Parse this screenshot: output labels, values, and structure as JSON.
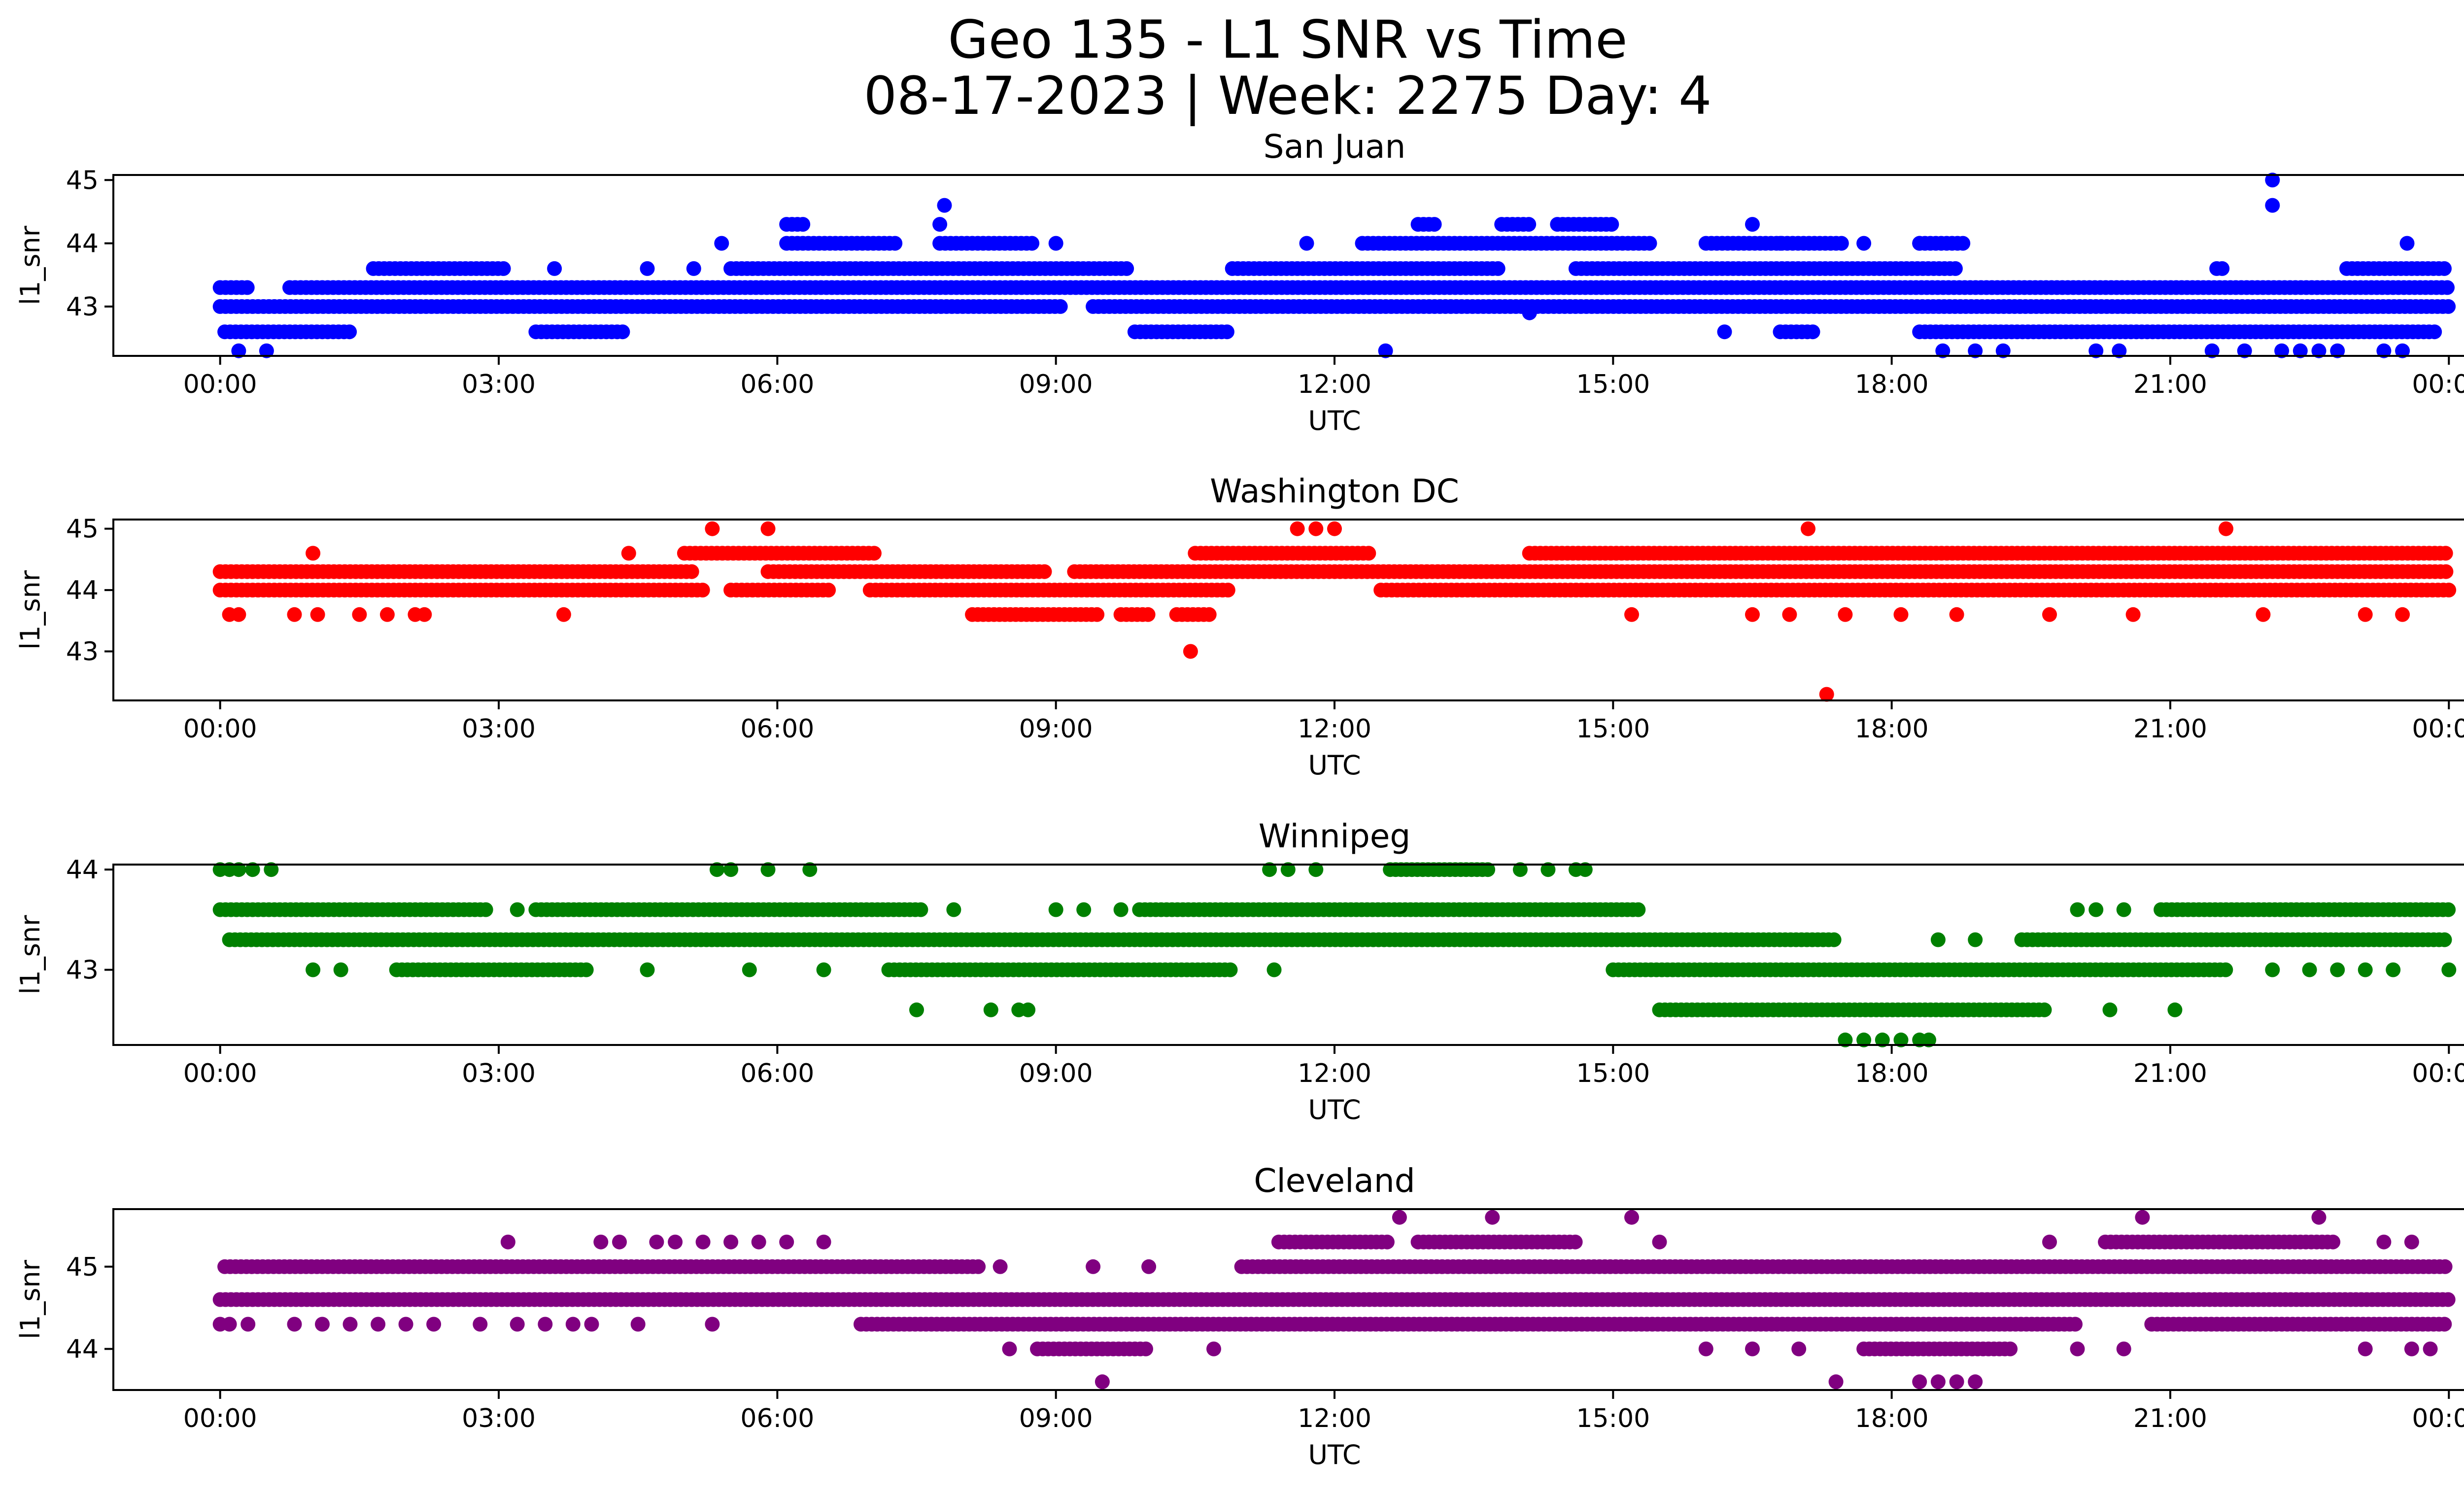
{
  "figure": {
    "title_line1": "Geo 135 - L1 SNR vs Time",
    "title_line2": "08-17-2023 | Week: 2275 Day: 4"
  },
  "chart_data": [
    {
      "type": "scatter",
      "title": "San Juan",
      "xlabel": "UTC",
      "ylabel": "l1_snr",
      "color": "#0000ff",
      "x_ticks": [
        "00:00",
        "03:00",
        "06:00",
        "09:00",
        "12:00",
        "15:00",
        "18:00",
        "21:00",
        "00:00"
      ],
      "x_range_hours": [
        -1.15,
        25.15
      ],
      "y_ticks": [
        43,
        44,
        45
      ],
      "ylim": [
        42.22,
        45.08
      ],
      "levels": [
        {
          "y": 43.0,
          "intervals": [
            [
              0,
              9.1
            ],
            [
              9.4,
              24.0
            ]
          ]
        },
        {
          "y": 43.3,
          "intervals": [
            [
              0,
              0.3
            ],
            [
              0.75,
              24.0
            ]
          ]
        },
        {
          "y": 42.6,
          "intervals": [
            [
              0.05,
              1.4
            ],
            [
              3.4,
              4.35
            ],
            [
              9.85,
              10.85
            ],
            [
              16.2,
              16.25
            ],
            [
              16.8,
              17.2
            ],
            [
              18.3,
              23.9
            ]
          ]
        },
        {
          "y": 43.6,
          "intervals": [
            [
              1.65,
              3.1
            ],
            [
              5.5,
              9.8
            ],
            [
              10.9,
              13.8
            ],
            [
              14.6,
              18.7
            ],
            [
              21.5,
              21.6
            ],
            [
              22.9,
              24.0
            ]
          ]
        },
        {
          "y": 44.0,
          "intervals": [
            [
              6.1,
              7.3
            ],
            [
              7.75,
              8.8
            ],
            [
              12.3,
              15.4
            ],
            [
              16.0,
              17.5
            ],
            [
              18.3,
              18.8
            ]
          ]
        },
        {
          "y": 44.3,
          "intervals": [
            [
              6.1,
              6.3
            ],
            [
              7.75,
              7.8
            ],
            [
              12.9,
              13.1
            ],
            [
              13.8,
              14.1
            ],
            [
              14.4,
              15.0
            ]
          ]
        }
      ],
      "points": [
        {
          "x": 0.2,
          "y": 42.3
        },
        {
          "x": 0.5,
          "y": 42.3
        },
        {
          "x": 3.6,
          "y": 43.6
        },
        {
          "x": 4.6,
          "y": 43.6
        },
        {
          "x": 5.1,
          "y": 43.6
        },
        {
          "x": 5.4,
          "y": 44.0
        },
        {
          "x": 7.8,
          "y": 44.6
        },
        {
          "x": 9.0,
          "y": 44.0
        },
        {
          "x": 11.7,
          "y": 44.0
        },
        {
          "x": 12.55,
          "y": 42.3
        },
        {
          "x": 14.1,
          "y": 42.9
        },
        {
          "x": 16.5,
          "y": 44.3
        },
        {
          "x": 16.8,
          "y": 44.0
        },
        {
          "x": 17.7,
          "y": 44.0
        },
        {
          "x": 18.3,
          "y": 44.0
        },
        {
          "x": 18.55,
          "y": 42.3
        },
        {
          "x": 18.9,
          "y": 42.3
        },
        {
          "x": 19.2,
          "y": 42.3
        },
        {
          "x": 20.2,
          "y": 42.3
        },
        {
          "x": 20.45,
          "y": 42.3
        },
        {
          "x": 21.45,
          "y": 42.3
        },
        {
          "x": 21.8,
          "y": 42.3
        },
        {
          "x": 22.1,
          "y": 45.0
        },
        {
          "x": 22.1,
          "y": 44.6
        },
        {
          "x": 22.2,
          "y": 42.3
        },
        {
          "x": 22.4,
          "y": 42.3
        },
        {
          "x": 22.6,
          "y": 42.3
        },
        {
          "x": 22.8,
          "y": 42.3
        },
        {
          "x": 23.3,
          "y": 42.3
        },
        {
          "x": 23.5,
          "y": 42.3
        },
        {
          "x": 23.55,
          "y": 44.0
        }
      ]
    },
    {
      "type": "scatter",
      "title": "Washington DC",
      "xlabel": "UTC",
      "ylabel": "l1_snr",
      "color": "#ff0000",
      "x_ticks": [
        "00:00",
        "03:00",
        "06:00",
        "09:00",
        "12:00",
        "15:00",
        "18:00",
        "21:00",
        "00:00"
      ],
      "x_range_hours": [
        -1.15,
        25.15
      ],
      "y_ticks": [
        43,
        44,
        45
      ],
      "ylim": [
        42.2,
        45.15
      ],
      "levels": [
        {
          "y": 44.3,
          "intervals": [
            [
              0,
              5.1
            ],
            [
              5.9,
              8.9
            ],
            [
              9.2,
              24.0
            ]
          ]
        },
        {
          "y": 44.0,
          "intervals": [
            [
              0,
              5.2
            ],
            [
              5.5,
              6.6
            ],
            [
              7.0,
              10.9
            ],
            [
              12.5,
              24.0
            ]
          ]
        },
        {
          "y": 43.6,
          "intervals": [
            [
              8.1,
              9.5
            ],
            [
              9.7,
              10.0
            ],
            [
              10.3,
              10.7
            ]
          ]
        },
        {
          "y": 44.6,
          "intervals": [
            [
              5.0,
              7.1
            ],
            [
              10.5,
              12.4
            ],
            [
              14.1,
              24.0
            ]
          ]
        }
      ],
      "points": [
        {
          "x": 0.1,
          "y": 43.6
        },
        {
          "x": 0.2,
          "y": 43.6
        },
        {
          "x": 0.8,
          "y": 43.6
        },
        {
          "x": 1.05,
          "y": 43.6
        },
        {
          "x": 1.0,
          "y": 44.6
        },
        {
          "x": 1.5,
          "y": 43.6
        },
        {
          "x": 1.8,
          "y": 43.6
        },
        {
          "x": 2.1,
          "y": 43.6
        },
        {
          "x": 2.2,
          "y": 43.6
        },
        {
          "x": 3.7,
          "y": 43.6
        },
        {
          "x": 4.4,
          "y": 44.6
        },
        {
          "x": 5.3,
          "y": 45.0
        },
        {
          "x": 5.9,
          "y": 45.0
        },
        {
          "x": 10.45,
          "y": 43.0
        },
        {
          "x": 11.6,
          "y": 45.0
        },
        {
          "x": 11.8,
          "y": 45.0
        },
        {
          "x": 12.0,
          "y": 45.0
        },
        {
          "x": 15.2,
          "y": 43.6
        },
        {
          "x": 16.5,
          "y": 43.6
        },
        {
          "x": 16.9,
          "y": 43.6
        },
        {
          "x": 17.1,
          "y": 45.0
        },
        {
          "x": 17.3,
          "y": 42.3
        },
        {
          "x": 17.5,
          "y": 43.6
        },
        {
          "x": 18.1,
          "y": 43.6
        },
        {
          "x": 18.7,
          "y": 43.6
        },
        {
          "x": 19.7,
          "y": 43.6
        },
        {
          "x": 20.6,
          "y": 43.6
        },
        {
          "x": 21.6,
          "y": 45.0
        },
        {
          "x": 22.0,
          "y": 43.6
        },
        {
          "x": 23.1,
          "y": 43.6
        },
        {
          "x": 23.5,
          "y": 43.6
        }
      ]
    },
    {
      "type": "scatter",
      "title": "Winnipeg",
      "xlabel": "UTC",
      "ylabel": "l1_snr",
      "color": "#008000",
      "x_ticks": [
        "00:00",
        "03:00",
        "06:00",
        "09:00",
        "12:00",
        "15:00",
        "18:00",
        "21:00",
        "00:00"
      ],
      "x_range_hours": [
        -1.15,
        25.15
      ],
      "y_ticks": [
        43,
        44
      ],
      "ylim": [
        42.25,
        44.05
      ],
      "levels": [
        {
          "y": 43.6,
          "intervals": [
            [
              0,
              2.9
            ],
            [
              3.4,
              7.6
            ],
            [
              9.9,
              15.3
            ],
            [
              20.9,
              24.0
            ]
          ]
        },
        {
          "y": 43.3,
          "intervals": [
            [
              0.1,
              17.4
            ],
            [
              19.4,
              24.0
            ]
          ]
        },
        {
          "y": 43.0,
          "intervals": [
            [
              1.9,
              4.0
            ],
            [
              7.2,
              10.9
            ],
            [
              15.0,
              21.6
            ]
          ]
        },
        {
          "y": 42.6,
          "intervals": [
            [
              15.5,
              19.7
            ]
          ]
        },
        {
          "y": 44.0,
          "intervals": [
            [
              12.6,
              13.7
            ]
          ]
        }
      ],
      "points": [
        {
          "x": 0.0,
          "y": 44.0
        },
        {
          "x": 0.1,
          "y": 44.0
        },
        {
          "x": 0.2,
          "y": 44.0
        },
        {
          "x": 0.35,
          "y": 44.0
        },
        {
          "x": 0.55,
          "y": 44.0
        },
        {
          "x": 1.0,
          "y": 43.0
        },
        {
          "x": 1.3,
          "y": 43.0
        },
        {
          "x": 3.2,
          "y": 43.6
        },
        {
          "x": 4.6,
          "y": 43.0
        },
        {
          "x": 5.35,
          "y": 44.0
        },
        {
          "x": 5.5,
          "y": 44.0
        },
        {
          "x": 5.9,
          "y": 44.0
        },
        {
          "x": 6.35,
          "y": 44.0
        },
        {
          "x": 5.7,
          "y": 43.0
        },
        {
          "x": 6.5,
          "y": 43.0
        },
        {
          "x": 7.5,
          "y": 42.6
        },
        {
          "x": 7.9,
          "y": 43.6
        },
        {
          "x": 8.3,
          "y": 42.6
        },
        {
          "x": 8.6,
          "y": 42.6
        },
        {
          "x": 8.7,
          "y": 42.6
        },
        {
          "x": 9.0,
          "y": 43.6
        },
        {
          "x": 9.3,
          "y": 43.6
        },
        {
          "x": 9.7,
          "y": 43.6
        },
        {
          "x": 11.3,
          "y": 44.0
        },
        {
          "x": 11.5,
          "y": 44.0
        },
        {
          "x": 11.8,
          "y": 44.0
        },
        {
          "x": 11.35,
          "y": 43.0
        },
        {
          "x": 14.0,
          "y": 44.0
        },
        {
          "x": 14.3,
          "y": 44.0
        },
        {
          "x": 14.6,
          "y": 44.0
        },
        {
          "x": 14.7,
          "y": 44.0
        },
        {
          "x": 17.5,
          "y": 42.3
        },
        {
          "x": 17.7,
          "y": 42.3
        },
        {
          "x": 17.9,
          "y": 42.3
        },
        {
          "x": 18.1,
          "y": 42.3
        },
        {
          "x": 18.3,
          "y": 42.3
        },
        {
          "x": 18.4,
          "y": 42.3
        },
        {
          "x": 18.5,
          "y": 43.3
        },
        {
          "x": 18.9,
          "y": 43.3
        },
        {
          "x": 20.0,
          "y": 43.6
        },
        {
          "x": 20.2,
          "y": 43.6
        },
        {
          "x": 20.5,
          "y": 43.6
        },
        {
          "x": 20.35,
          "y": 42.6
        },
        {
          "x": 21.05,
          "y": 42.6
        },
        {
          "x": 22.1,
          "y": 43.0
        },
        {
          "x": 22.5,
          "y": 43.0
        },
        {
          "x": 22.8,
          "y": 43.0
        },
        {
          "x": 23.1,
          "y": 43.0
        },
        {
          "x": 23.4,
          "y": 43.0
        },
        {
          "x": 24.0,
          "y": 43.0
        }
      ]
    },
    {
      "type": "scatter",
      "title": "Cleveland",
      "xlabel": "UTC",
      "ylabel": "l1_snr",
      "color": "#800080",
      "x_ticks": [
        "00:00",
        "03:00",
        "06:00",
        "09:00",
        "12:00",
        "15:00",
        "18:00",
        "21:00",
        "00:00"
      ],
      "x_range_hours": [
        -1.15,
        25.15
      ],
      "y_ticks": [
        44,
        45
      ],
      "ylim": [
        43.5,
        45.7
      ],
      "levels": [
        {
          "y": 45.0,
          "intervals": [
            [
              0.05,
              8.2
            ],
            [
              11.0,
              24.0
            ]
          ]
        },
        {
          "y": 44.6,
          "intervals": [
            [
              0,
              24.0
            ]
          ]
        },
        {
          "y": 44.3,
          "intervals": [
            [
              6.9,
              20.0
            ],
            [
              20.8,
              24.0
            ]
          ]
        },
        {
          "y": 45.3,
          "intervals": [
            [
              11.4,
              12.6
            ],
            [
              12.9,
              14.6
            ],
            [
              20.3,
              22.8
            ]
          ]
        },
        {
          "y": 44.0,
          "intervals": [
            [
              8.8,
              10.0
            ],
            [
              17.7,
              19.3
            ]
          ]
        }
      ],
      "points": [
        {
          "x": 0.0,
          "y": 44.3
        },
        {
          "x": 0.1,
          "y": 44.3
        },
        {
          "x": 0.3,
          "y": 44.3
        },
        {
          "x": 0.8,
          "y": 44.3
        },
        {
          "x": 1.1,
          "y": 44.3
        },
        {
          "x": 1.4,
          "y": 44.3
        },
        {
          "x": 1.7,
          "y": 44.3
        },
        {
          "x": 2.0,
          "y": 44.3
        },
        {
          "x": 2.3,
          "y": 44.3
        },
        {
          "x": 2.8,
          "y": 44.3
        },
        {
          "x": 3.2,
          "y": 44.3
        },
        {
          "x": 3.5,
          "y": 44.3
        },
        {
          "x": 3.8,
          "y": 44.3
        },
        {
          "x": 4.0,
          "y": 44.3
        },
        {
          "x": 4.5,
          "y": 44.3
        },
        {
          "x": 5.3,
          "y": 44.3
        },
        {
          "x": 3.1,
          "y": 45.3
        },
        {
          "x": 4.1,
          "y": 45.3
        },
        {
          "x": 4.3,
          "y": 45.3
        },
        {
          "x": 4.7,
          "y": 45.3
        },
        {
          "x": 4.9,
          "y": 45.3
        },
        {
          "x": 5.2,
          "y": 45.3
        },
        {
          "x": 5.5,
          "y": 45.3
        },
        {
          "x": 5.8,
          "y": 45.3
        },
        {
          "x": 6.1,
          "y": 45.3
        },
        {
          "x": 6.5,
          "y": 45.3
        },
        {
          "x": 8.4,
          "y": 45.0
        },
        {
          "x": 8.5,
          "y": 44.0
        },
        {
          "x": 9.5,
          "y": 43.6
        },
        {
          "x": 9.4,
          "y": 45.0
        },
        {
          "x": 10.0,
          "y": 45.0
        },
        {
          "x": 10.7,
          "y": 44.0
        },
        {
          "x": 12.7,
          "y": 45.6
        },
        {
          "x": 13.7,
          "y": 45.6
        },
        {
          "x": 15.2,
          "y": 45.6
        },
        {
          "x": 15.5,
          "y": 45.3
        },
        {
          "x": 16.0,
          "y": 44.0
        },
        {
          "x": 16.5,
          "y": 44.0
        },
        {
          "x": 17.0,
          "y": 44.0
        },
        {
          "x": 17.4,
          "y": 43.6
        },
        {
          "x": 18.3,
          "y": 43.6
        },
        {
          "x": 18.5,
          "y": 43.6
        },
        {
          "x": 18.7,
          "y": 43.6
        },
        {
          "x": 18.9,
          "y": 43.6
        },
        {
          "x": 19.7,
          "y": 45.3
        },
        {
          "x": 20.0,
          "y": 44.0
        },
        {
          "x": 20.5,
          "y": 44.0
        },
        {
          "x": 20.7,
          "y": 45.6
        },
        {
          "x": 22.6,
          "y": 45.6
        },
        {
          "x": 23.3,
          "y": 45.3
        },
        {
          "x": 23.6,
          "y": 45.3
        },
        {
          "x": 23.1,
          "y": 44.0
        },
        {
          "x": 23.6,
          "y": 44.0
        },
        {
          "x": 23.8,
          "y": 44.0
        }
      ]
    }
  ]
}
